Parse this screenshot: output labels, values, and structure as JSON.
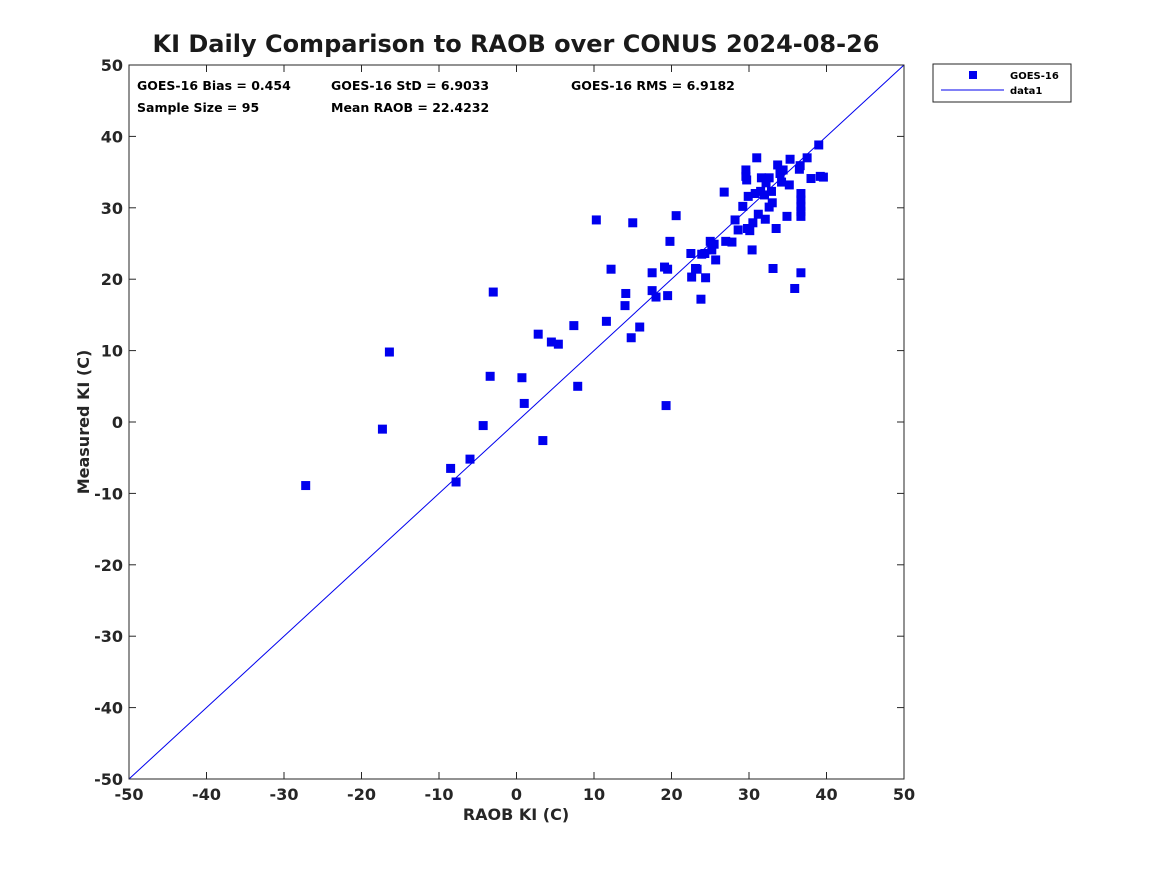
{
  "chart_data": {
    "type": "scatter",
    "title": "KI Daily Comparison to RAOB over CONUS 2024-08-26",
    "xlabel": "RAOB KI (C)",
    "ylabel": "Measured KI (C)",
    "xlim": [
      -50,
      50
    ],
    "ylim": [
      -50,
      50
    ],
    "xticks": [
      "-50",
      "-40",
      "-30",
      "-20",
      "-10",
      "0",
      "10",
      "20",
      "30",
      "40",
      "50"
    ],
    "yticks": [
      "-50",
      "-40",
      "-30",
      "-20",
      "-10",
      "0",
      "10",
      "20",
      "30",
      "40",
      "50"
    ],
    "legend_position": "outside top-right",
    "stats": {
      "bias": "GOES-16 Bias = 0.454",
      "std": "GOES-16 StD = 6.9033",
      "rms": "GOES-16 RMS = 6.9182",
      "sample_size": "Sample Size = 95",
      "mean_raob": "Mean RAOB = 22.4232"
    },
    "series": [
      {
        "name": "GOES-16",
        "kind": "scatter",
        "marker": "square",
        "color": "#0000ee",
        "points": [
          [
            -27.2,
            -8.9
          ],
          [
            -17.3,
            -1.0
          ],
          [
            -16.4,
            9.8
          ],
          [
            -8.5,
            -6.5
          ],
          [
            -7.8,
            -8.4
          ],
          [
            -6.0,
            -5.2
          ],
          [
            -4.3,
            -0.5
          ],
          [
            -3.4,
            6.4
          ],
          [
            -3.0,
            18.2
          ],
          [
            0.7,
            6.2
          ],
          [
            1.0,
            2.6
          ],
          [
            2.8,
            12.3
          ],
          [
            3.4,
            -2.6
          ],
          [
            4.5,
            11.2
          ],
          [
            5.4,
            10.9
          ],
          [
            7.4,
            13.5
          ],
          [
            7.9,
            5.0
          ],
          [
            10.3,
            28.3
          ],
          [
            11.6,
            14.1
          ],
          [
            12.2,
            21.4
          ],
          [
            14.0,
            16.3
          ],
          [
            14.1,
            18.0
          ],
          [
            14.8,
            11.8
          ],
          [
            15.0,
            27.9
          ],
          [
            15.9,
            13.3
          ],
          [
            17.5,
            18.4
          ],
          [
            17.5,
            20.9
          ],
          [
            18.0,
            17.5
          ],
          [
            19.1,
            21.7
          ],
          [
            19.3,
            2.3
          ],
          [
            19.5,
            17.7
          ],
          [
            19.5,
            21.4
          ],
          [
            19.8,
            25.3
          ],
          [
            20.6,
            28.9
          ],
          [
            22.5,
            23.6
          ],
          [
            22.6,
            20.3
          ],
          [
            23.1,
            21.5
          ],
          [
            23.3,
            21.4
          ],
          [
            23.8,
            17.2
          ],
          [
            23.9,
            23.5
          ],
          [
            24.3,
            23.6
          ],
          [
            24.4,
            20.2
          ],
          [
            25.0,
            25.3
          ],
          [
            25.2,
            24.1
          ],
          [
            25.5,
            24.9
          ],
          [
            25.7,
            22.7
          ],
          [
            26.8,
            32.2
          ],
          [
            27.0,
            25.3
          ],
          [
            27.8,
            25.2
          ],
          [
            28.2,
            28.3
          ],
          [
            28.6,
            26.9
          ],
          [
            29.2,
            30.2
          ],
          [
            29.6,
            35.3
          ],
          [
            29.6,
            34.4
          ],
          [
            29.7,
            33.9
          ],
          [
            29.8,
            27.1
          ],
          [
            29.9,
            31.6
          ],
          [
            30.1,
            26.8
          ],
          [
            30.4,
            24.1
          ],
          [
            30.5,
            27.9
          ],
          [
            30.8,
            32.0
          ],
          [
            31.0,
            37.0
          ],
          [
            31.2,
            29.1
          ],
          [
            31.5,
            32.3
          ],
          [
            31.6,
            34.2
          ],
          [
            32.0,
            31.8
          ],
          [
            32.1,
            28.4
          ],
          [
            32.2,
            33.5
          ],
          [
            32.6,
            34.2
          ],
          [
            32.6,
            30.1
          ],
          [
            32.9,
            32.3
          ],
          [
            33.0,
            30.7
          ],
          [
            33.1,
            21.5
          ],
          [
            33.5,
            27.1
          ],
          [
            33.7,
            36.0
          ],
          [
            34.0,
            34.8
          ],
          [
            34.2,
            33.6
          ],
          [
            34.4,
            35.3
          ],
          [
            34.9,
            28.8
          ],
          [
            35.2,
            33.2
          ],
          [
            35.3,
            36.8
          ],
          [
            35.9,
            18.7
          ],
          [
            36.5,
            35.4
          ],
          [
            36.6,
            35.9
          ],
          [
            36.7,
            32.0
          ],
          [
            36.7,
            31.1
          ],
          [
            36.7,
            30.2
          ],
          [
            36.7,
            29.5
          ],
          [
            36.7,
            28.8
          ],
          [
            36.7,
            20.9
          ],
          [
            37.5,
            37.0
          ],
          [
            38.0,
            34.1
          ],
          [
            39.0,
            38.8
          ],
          [
            39.2,
            34.4
          ],
          [
            39.6,
            34.3
          ]
        ]
      },
      {
        "name": "data1",
        "kind": "line",
        "color": "#0000ee",
        "x": [
          -50,
          50
        ],
        "y": [
          -50,
          50
        ]
      }
    ]
  }
}
